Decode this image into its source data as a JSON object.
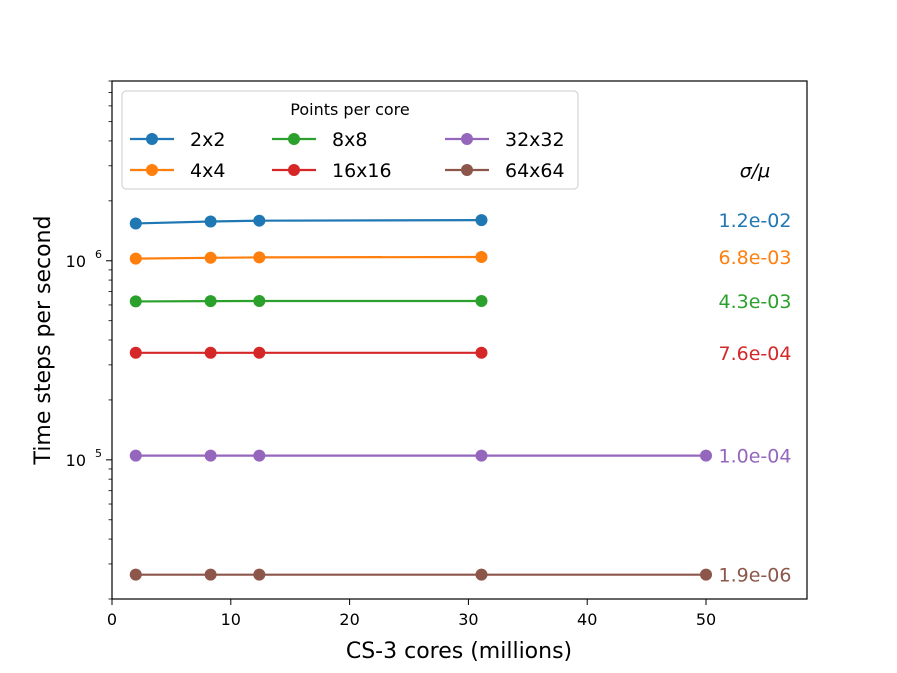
{
  "chart_data": {
    "type": "line",
    "title": "",
    "xlabel": "CS-3 cores (millions)",
    "ylabel": "Time steps per second",
    "xlim": [
      0,
      58.5
    ],
    "ylim": [
      20000,
      8000000
    ],
    "yscale": "log",
    "xticks": [
      0,
      10,
      20,
      30,
      40,
      50
    ],
    "yticks": [
      {
        "value": 100000,
        "base": "10",
        "exp": "5"
      },
      {
        "value": 1000000,
        "base": "10",
        "exp": "6"
      }
    ],
    "legend": {
      "title": "Points per core",
      "position": "top-left"
    },
    "annotation_header": "σ/μ",
    "series": [
      {
        "name": "2x2",
        "color": "#1f77b4",
        "x": [
          2,
          8.3,
          12.4,
          31.1
        ],
        "values": [
          1540000,
          1575000,
          1590000,
          1600000
        ],
        "sigma_mu": "1.2e-02"
      },
      {
        "name": "4x4",
        "color": "#ff7f0e",
        "x": [
          2,
          8.3,
          12.4,
          31.1
        ],
        "values": [
          1025000,
          1035000,
          1040000,
          1045000
        ],
        "sigma_mu": "6.8e-03"
      },
      {
        "name": "8x8",
        "color": "#2ca02c",
        "x": [
          2,
          8.3,
          12.4,
          31.1
        ],
        "values": [
          625000,
          627000,
          628000,
          628000
        ],
        "sigma_mu": "4.3e-03"
      },
      {
        "name": "16x16",
        "color": "#d62728",
        "x": [
          2,
          8.3,
          12.4,
          31.1
        ],
        "values": [
          345000,
          345000,
          345000,
          345000
        ],
        "sigma_mu": "7.6e-04"
      },
      {
        "name": "32x32",
        "color": "#9467bd",
        "x": [
          2,
          8.3,
          12.4,
          31.1,
          50
        ],
        "values": [
          105000,
          105000,
          105000,
          105000,
          105000
        ],
        "sigma_mu": "1.0e-04"
      },
      {
        "name": "64x64",
        "color": "#8c564b",
        "x": [
          2,
          8.3,
          12.4,
          31.1,
          50
        ],
        "values": [
          26500,
          26500,
          26500,
          26500,
          26500
        ],
        "sigma_mu": "1.9e-06"
      }
    ]
  }
}
